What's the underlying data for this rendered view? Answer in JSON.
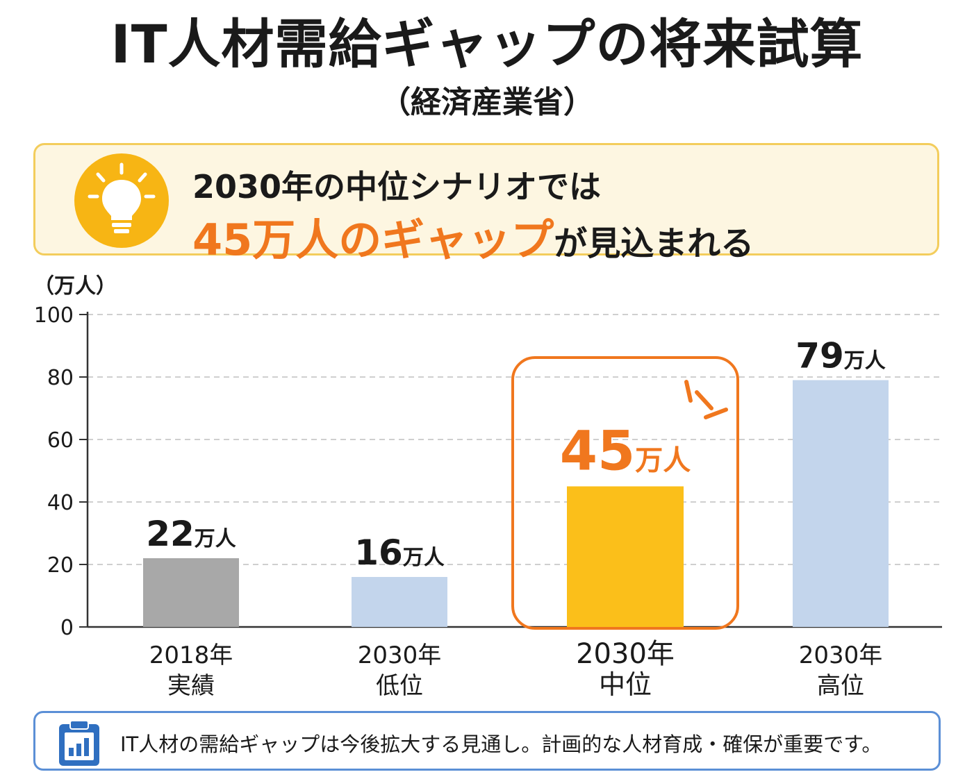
{
  "header": {
    "title": "IT人材需給ギャップの将来試算",
    "subtitle": "（経済産業省）"
  },
  "callout": {
    "line1": "2030年の中位シナリオでは",
    "highlight": "45万人のギャップ",
    "tail": "が見込まれる",
    "icon": "lightbulb-icon",
    "accent_color": "#f0771e"
  },
  "chart_data": {
    "type": "bar",
    "unit_label": "（万人）",
    "categories": [
      {
        "year": "2018年",
        "label": "実績"
      },
      {
        "year": "2030年",
        "label": "低位"
      },
      {
        "year": "2030年",
        "label": "中位"
      },
      {
        "year": "2030年",
        "label": "高位"
      }
    ],
    "values": [
      22,
      16,
      45,
      79
    ],
    "value_labels": [
      {
        "number": "22",
        "unit": "万人"
      },
      {
        "number": "16",
        "unit": "万人"
      },
      {
        "number": "45",
        "unit": "万人"
      },
      {
        "number": "79",
        "unit": "万人"
      }
    ],
    "colors": [
      "#a8a8a8",
      "#c3d5ec",
      "#fbbf1a",
      "#c3d5ec"
    ],
    "highlight_index": 2,
    "highlight_color": "#f0771e",
    "ylim": [
      0,
      100
    ],
    "yticks": [
      "0",
      "20",
      "40",
      "60",
      "80",
      "100"
    ],
    "grid": true
  },
  "footer": {
    "icon": "clipboard-chart-icon",
    "text": "IT人材の需給ギャップは今後拡大する見通し。計画的な人材育成・確保が重要です。"
  }
}
